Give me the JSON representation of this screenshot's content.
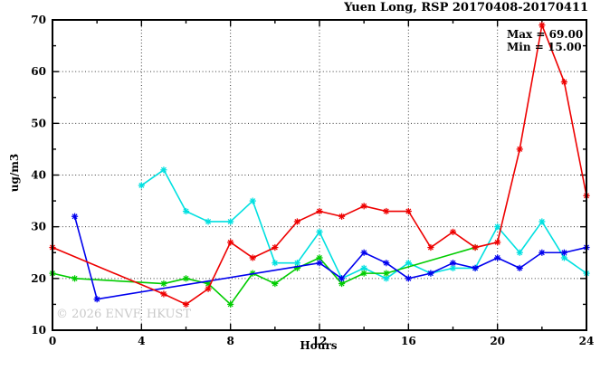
{
  "title": "Yuen Long, RSP 20170408-20170411",
  "annotation": {
    "max_label": "Max = 69.00",
    "min_label": "Min = 15.00"
  },
  "watermark": "© 2026 ENVF, HKUST",
  "chart_data": {
    "type": "line",
    "title": "Yuen Long, RSP 20170408-20170411",
    "xlabel": "Hours",
    "ylabel": "ug/m3",
    "xlim": [
      0,
      24
    ],
    "ylim": [
      10,
      70
    ],
    "x": [
      0,
      1,
      2,
      3,
      4,
      5,
      6,
      7,
      8,
      9,
      10,
      11,
      12,
      13,
      14,
      15,
      16,
      17,
      18,
      19,
      20,
      21,
      22,
      23,
      24
    ],
    "x_major_ticks": [
      0,
      4,
      8,
      12,
      16,
      20,
      24
    ],
    "x_minor_step": 2,
    "y_major_ticks": [
      10,
      20,
      30,
      40,
      50,
      60,
      70
    ],
    "y_minor_step": 5,
    "grid": true,
    "grid_x": [
      4,
      8,
      12,
      16,
      20
    ],
    "grid_y": [
      20,
      30,
      40,
      50,
      60
    ],
    "legend_position": "none",
    "max_value": 69.0,
    "min_value": 15.0,
    "series": [
      {
        "name": "cyan",
        "color": "#00e0e0",
        "values": [
          null,
          null,
          null,
          null,
          38,
          41,
          33,
          31,
          31,
          35,
          23,
          23,
          29,
          20,
          22,
          20,
          23,
          21,
          22,
          22,
          30,
          25,
          31,
          24,
          21
        ]
      },
      {
        "name": "green",
        "color": "#00cc00",
        "values": [
          21,
          20,
          null,
          null,
          null,
          19,
          20,
          19,
          15,
          21,
          19,
          22,
          24,
          19,
          21,
          21,
          null,
          null,
          null,
          26,
          null,
          null,
          null,
          null,
          null
        ]
      },
      {
        "name": "blue",
        "color": "#0000ee",
        "values": [
          null,
          32,
          16,
          null,
          null,
          null,
          null,
          null,
          null,
          null,
          null,
          null,
          23,
          20,
          25,
          23,
          20,
          21,
          23,
          22,
          24,
          22,
          25,
          25,
          26
        ]
      },
      {
        "name": "red",
        "color": "#ee0000",
        "values": [
          26,
          null,
          null,
          null,
          null,
          17,
          15,
          18,
          27,
          24,
          26,
          31,
          33,
          32,
          34,
          33,
          33,
          26,
          29,
          26,
          27,
          45,
          69,
          58,
          36
        ]
      }
    ]
  }
}
